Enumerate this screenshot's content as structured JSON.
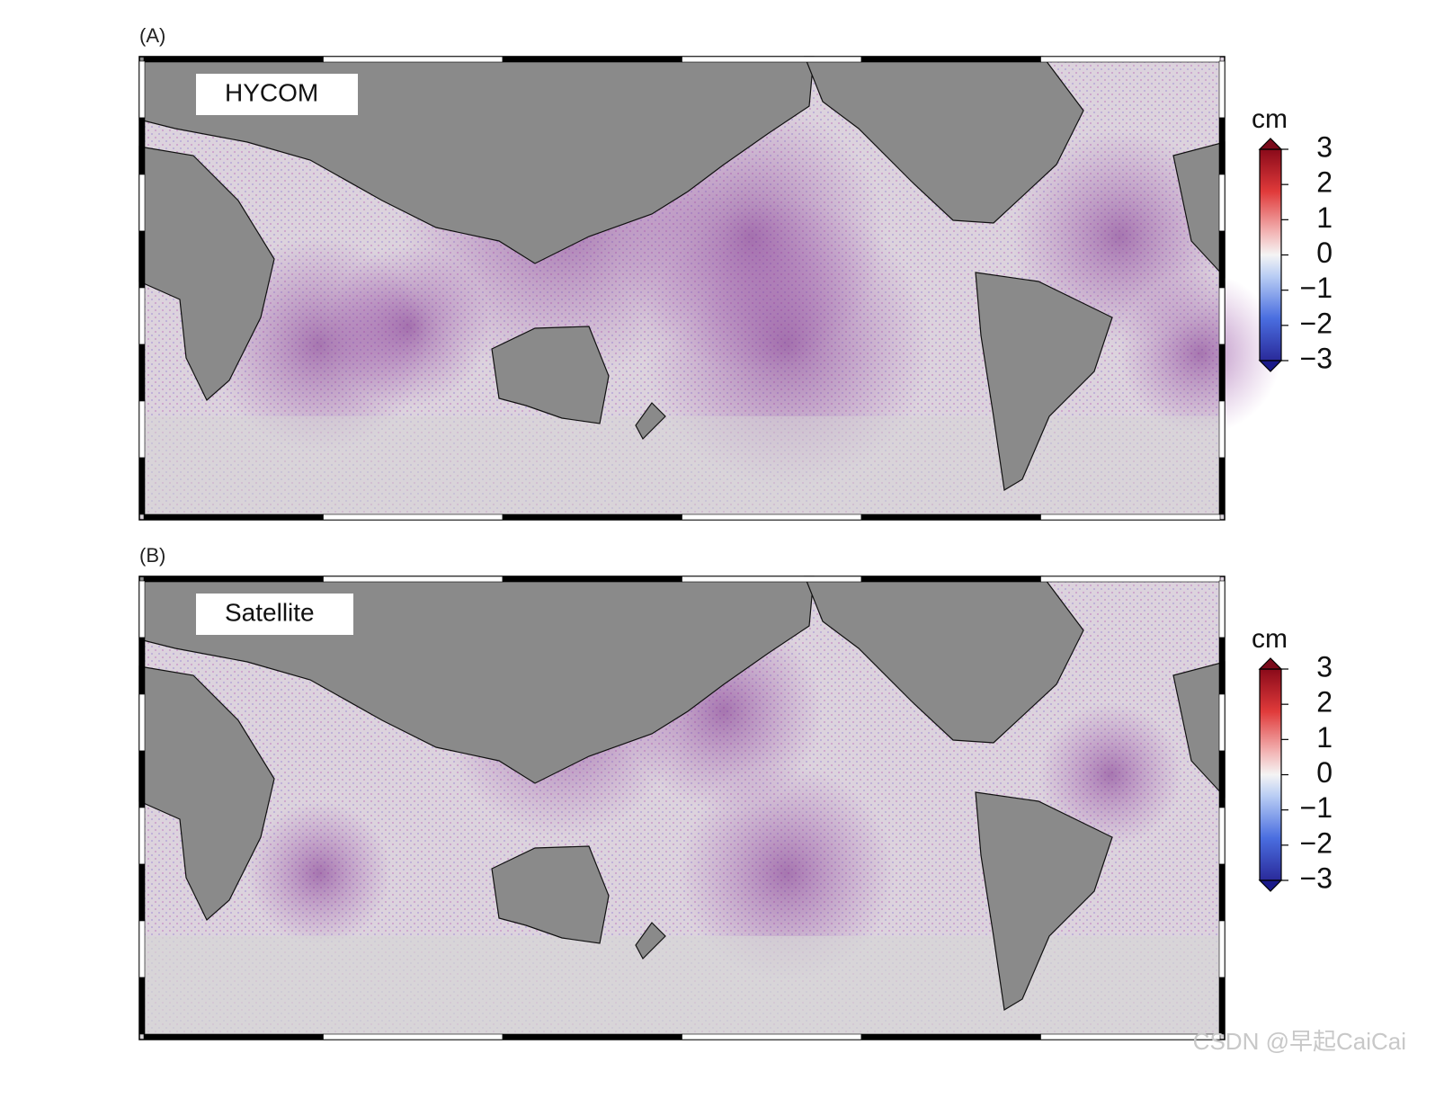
{
  "panels": [
    {
      "label": "(A)",
      "title": "HYCOM",
      "colorbar": {
        "unit": "cm",
        "lim": [
          -3,
          3
        ],
        "ticks": [
          3,
          2,
          1,
          0,
          {
            "value": -1,
            "label": "−1"
          },
          {
            "value": -2,
            "label": "−2"
          },
          {
            "value": -3,
            "label": "−3"
          }
        ]
      }
    },
    {
      "label": "(B)",
      "title": "Satellite",
      "colorbar": {
        "unit": "cm",
        "lim": [
          -3,
          3
        ],
        "ticks": [
          3,
          2,
          1,
          0,
          {
            "value": -1,
            "label": "−1"
          },
          {
            "value": -2,
            "label": "−2"
          },
          {
            "value": -3,
            "label": "−3"
          }
        ]
      }
    }
  ],
  "watermark": "CSDN @早起CaiCai"
}
